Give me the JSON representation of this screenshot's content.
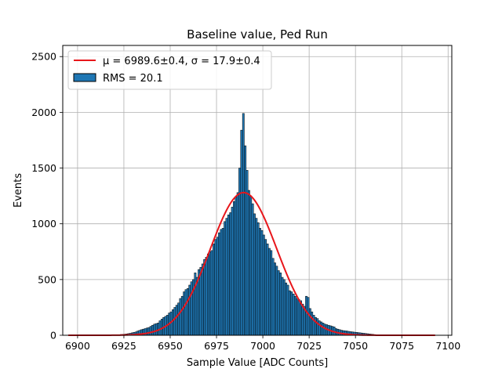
{
  "chart_data": {
    "type": "histogram",
    "title": "Baseline value, Ped Run",
    "xlabel": "Sample Value [ADC Counts]",
    "ylabel": "Events",
    "xlim": [
      6892,
      7102
    ],
    "ylim": [
      0,
      2600
    ],
    "x_ticks": [
      6900,
      6925,
      6950,
      6975,
      7000,
      7025,
      7050,
      7075,
      7100
    ],
    "y_ticks": [
      0,
      500,
      1000,
      1500,
      2000,
      2500
    ],
    "grid": true,
    "legend_position": "top-left",
    "legend": {
      "fit_label": "μ = 6989.6±0.4, σ = 17.9±0.4",
      "hist_label": "RMS = 20.1"
    },
    "fit": {
      "mu": 6989.6,
      "sigma": 17.9,
      "amplitude": 1280,
      "range": [
        6895,
        7093
      ]
    },
    "bin_width": 1,
    "bins": [
      [
        6920,
        3
      ],
      [
        6921,
        5
      ],
      [
        6922,
        4
      ],
      [
        6923,
        7
      ],
      [
        6924,
        8
      ],
      [
        6925,
        10
      ],
      [
        6926,
        12
      ],
      [
        6927,
        15
      ],
      [
        6928,
        18
      ],
      [
        6929,
        22
      ],
      [
        6930,
        26
      ],
      [
        6931,
        30
      ],
      [
        6932,
        38
      ],
      [
        6933,
        44
      ],
      [
        6934,
        50
      ],
      [
        6935,
        55
      ],
      [
        6936,
        60
      ],
      [
        6937,
        65
      ],
      [
        6938,
        70
      ],
      [
        6939,
        80
      ],
      [
        6940,
        90
      ],
      [
        6941,
        100
      ],
      [
        6942,
        105
      ],
      [
        6943,
        110
      ],
      [
        6944,
        130
      ],
      [
        6945,
        145
      ],
      [
        6946,
        160
      ],
      [
        6947,
        170
      ],
      [
        6948,
        180
      ],
      [
        6949,
        200
      ],
      [
        6950,
        210
      ],
      [
        6951,
        230
      ],
      [
        6952,
        250
      ],
      [
        6953,
        270
      ],
      [
        6954,
        290
      ],
      [
        6955,
        330
      ],
      [
        6956,
        350
      ],
      [
        6957,
        390
      ],
      [
        6958,
        410
      ],
      [
        6959,
        420
      ],
      [
        6960,
        450
      ],
      [
        6961,
        480
      ],
      [
        6962,
        500
      ],
      [
        6963,
        560
      ],
      [
        6964,
        520
      ],
      [
        6965,
        590
      ],
      [
        6966,
        610
      ],
      [
        6967,
        640
      ],
      [
        6968,
        680
      ],
      [
        6969,
        700
      ],
      [
        6970,
        730
      ],
      [
        6971,
        750
      ],
      [
        6972,
        760
      ],
      [
        6973,
        820
      ],
      [
        6974,
        860
      ],
      [
        6975,
        880
      ],
      [
        6976,
        920
      ],
      [
        6977,
        950
      ],
      [
        6978,
        960
      ],
      [
        6979,
        1020
      ],
      [
        6980,
        1050
      ],
      [
        6981,
        1080
      ],
      [
        6982,
        1100
      ],
      [
        6983,
        1150
      ],
      [
        6984,
        1200
      ],
      [
        6985,
        1240
      ],
      [
        6986,
        1280
      ],
      [
        6987,
        1500
      ],
      [
        6988,
        1840
      ],
      [
        6989,
        1990
      ],
      [
        6990,
        1700
      ],
      [
        6991,
        1480
      ],
      [
        6992,
        1300
      ],
      [
        6993,
        1250
      ],
      [
        6994,
        1180
      ],
      [
        6995,
        1090
      ],
      [
        6996,
        1050
      ],
      [
        6997,
        1010
      ],
      [
        6998,
        960
      ],
      [
        6999,
        940
      ],
      [
        7000,
        900
      ],
      [
        7001,
        860
      ],
      [
        7002,
        820
      ],
      [
        7003,
        780
      ],
      [
        7004,
        760
      ],
      [
        7005,
        690
      ],
      [
        7006,
        650
      ],
      [
        7007,
        620
      ],
      [
        7008,
        580
      ],
      [
        7009,
        560
      ],
      [
        7010,
        520
      ],
      [
        7011,
        500
      ],
      [
        7012,
        470
      ],
      [
        7013,
        450
      ],
      [
        7014,
        400
      ],
      [
        7015,
        390
      ],
      [
        7016,
        370
      ],
      [
        7017,
        350
      ],
      [
        7018,
        330
      ],
      [
        7019,
        320
      ],
      [
        7020,
        310
      ],
      [
        7021,
        280
      ],
      [
        7022,
        260
      ],
      [
        7023,
        350
      ],
      [
        7024,
        340
      ],
      [
        7025,
        240
      ],
      [
        7026,
        210
      ],
      [
        7027,
        180
      ],
      [
        7028,
        160
      ],
      [
        7029,
        150
      ],
      [
        7030,
        130
      ],
      [
        7031,
        120
      ],
      [
        7032,
        110
      ],
      [
        7033,
        100
      ],
      [
        7034,
        95
      ],
      [
        7035,
        90
      ],
      [
        7036,
        85
      ],
      [
        7037,
        80
      ],
      [
        7038,
        75
      ],
      [
        7039,
        60
      ],
      [
        7040,
        55
      ],
      [
        7041,
        50
      ],
      [
        7042,
        45
      ],
      [
        7043,
        42
      ],
      [
        7044,
        40
      ],
      [
        7045,
        38
      ],
      [
        7046,
        35
      ],
      [
        7047,
        32
      ],
      [
        7048,
        30
      ],
      [
        7049,
        28
      ],
      [
        7050,
        26
      ],
      [
        7051,
        24
      ],
      [
        7052,
        22
      ],
      [
        7053,
        20
      ],
      [
        7054,
        18
      ],
      [
        7055,
        16
      ],
      [
        7056,
        14
      ],
      [
        7057,
        12
      ],
      [
        7058,
        10
      ],
      [
        7059,
        8
      ],
      [
        7060,
        6
      ],
      [
        7061,
        4
      ]
    ],
    "colors": {
      "bar_fill": "#1f77b4",
      "bar_edge": "#000000",
      "fit_line": "#e8161b",
      "grid": "#b0b0b0"
    }
  }
}
